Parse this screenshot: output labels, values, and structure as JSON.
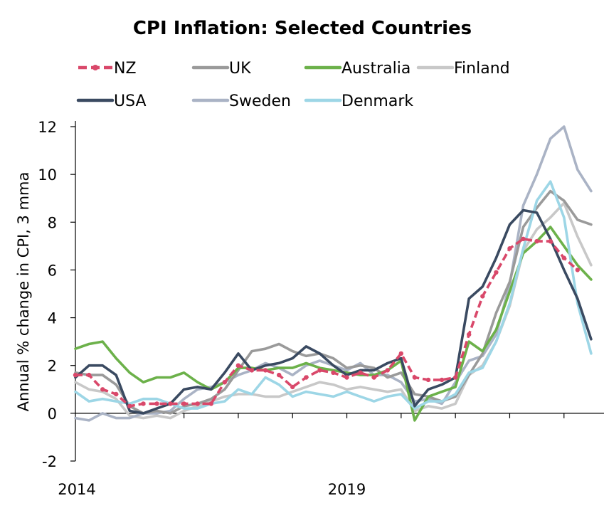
{
  "chart_data": {
    "type": "line",
    "title": "CPI Inflation: Selected Countries",
    "ylabel": "Annual % change in CPI, 3 mma",
    "xlabel": "",
    "xlim": [
      2014.0,
      2023.75
    ],
    "ylim": [
      -2,
      12
    ],
    "yticks": [
      -2,
      0,
      2,
      4,
      6,
      8,
      10,
      12
    ],
    "xtick_labels": [
      {
        "x": 2014.0,
        "label": "2014"
      },
      {
        "x": 2019.0,
        "label": "2019"
      }
    ],
    "grid": false,
    "legend_position": "top",
    "series": [
      {
        "name": "NZ",
        "color": "#d9486a",
        "style": "dashed-dots",
        "points": [
          [
            2014.0,
            1.6
          ],
          [
            2014.25,
            1.6
          ],
          [
            2014.5,
            1.0
          ],
          [
            2014.75,
            0.8
          ],
          [
            2015.0,
            0.3
          ],
          [
            2015.25,
            0.4
          ],
          [
            2015.5,
            0.4
          ],
          [
            2015.75,
            0.4
          ],
          [
            2016.0,
            0.4
          ],
          [
            2016.25,
            0.4
          ],
          [
            2016.5,
            0.4
          ],
          [
            2016.75,
            1.3
          ],
          [
            2017.0,
            2.0
          ],
          [
            2017.25,
            1.8
          ],
          [
            2017.5,
            1.8
          ],
          [
            2017.75,
            1.6
          ],
          [
            2018.0,
            1.1
          ],
          [
            2018.25,
            1.5
          ],
          [
            2018.5,
            1.8
          ],
          [
            2018.75,
            1.7
          ],
          [
            2019.0,
            1.5
          ],
          [
            2019.25,
            1.7
          ],
          [
            2019.5,
            1.5
          ],
          [
            2019.75,
            1.8
          ],
          [
            2020.0,
            2.5
          ],
          [
            2020.25,
            1.5
          ],
          [
            2020.5,
            1.4
          ],
          [
            2020.75,
            1.4
          ],
          [
            2021.0,
            1.5
          ],
          [
            2021.25,
            3.3
          ],
          [
            2021.5,
            4.9
          ],
          [
            2021.75,
            5.9
          ],
          [
            2022.0,
            6.9
          ],
          [
            2022.25,
            7.3
          ],
          [
            2022.5,
            7.2
          ],
          [
            2022.75,
            7.2
          ],
          [
            2023.0,
            6.5
          ],
          [
            2023.25,
            6.0
          ]
        ]
      },
      {
        "name": "UK",
        "color": "#9a9a9a",
        "style": "solid",
        "points": [
          [
            2014.0,
            1.7
          ],
          [
            2014.25,
            1.6
          ],
          [
            2014.5,
            1.6
          ],
          [
            2014.75,
            1.2
          ],
          [
            2015.0,
            0.3
          ],
          [
            2015.25,
            0.0
          ],
          [
            2015.5,
            0.1
          ],
          [
            2015.75,
            0.0
          ],
          [
            2016.0,
            0.3
          ],
          [
            2016.25,
            0.4
          ],
          [
            2016.5,
            0.6
          ],
          [
            2016.75,
            1.0
          ],
          [
            2017.0,
            1.8
          ],
          [
            2017.25,
            2.6
          ],
          [
            2017.5,
            2.7
          ],
          [
            2017.75,
            2.9
          ],
          [
            2018.0,
            2.6
          ],
          [
            2018.25,
            2.4
          ],
          [
            2018.5,
            2.5
          ],
          [
            2018.75,
            2.3
          ],
          [
            2019.0,
            1.9
          ],
          [
            2019.25,
            2.0
          ],
          [
            2019.5,
            1.9
          ],
          [
            2019.75,
            1.5
          ],
          [
            2020.0,
            1.7
          ],
          [
            2020.25,
            0.8
          ],
          [
            2020.5,
            0.7
          ],
          [
            2020.75,
            0.5
          ],
          [
            2021.0,
            0.7
          ],
          [
            2021.25,
            1.6
          ],
          [
            2021.5,
            2.5
          ],
          [
            2021.75,
            4.2
          ],
          [
            2022.0,
            5.5
          ],
          [
            2022.25,
            7.8
          ],
          [
            2022.5,
            8.6
          ],
          [
            2022.75,
            9.3
          ],
          [
            2023.0,
            8.9
          ],
          [
            2023.25,
            8.1
          ],
          [
            2023.5,
            7.9
          ]
        ]
      },
      {
        "name": "Australia",
        "color": "#6cb14a",
        "style": "solid",
        "points": [
          [
            2014.0,
            2.7
          ],
          [
            2014.25,
            2.9
          ],
          [
            2014.5,
            3.0
          ],
          [
            2014.75,
            2.3
          ],
          [
            2015.0,
            1.7
          ],
          [
            2015.25,
            1.3
          ],
          [
            2015.5,
            1.5
          ],
          [
            2015.75,
            1.5
          ],
          [
            2016.0,
            1.7
          ],
          [
            2016.25,
            1.3
          ],
          [
            2016.5,
            1.0
          ],
          [
            2016.75,
            1.3
          ],
          [
            2017.0,
            1.9
          ],
          [
            2017.25,
            1.9
          ],
          [
            2017.5,
            1.8
          ],
          [
            2017.75,
            1.9
          ],
          [
            2018.0,
            1.9
          ],
          [
            2018.25,
            2.1
          ],
          [
            2018.5,
            1.9
          ],
          [
            2018.75,
            1.8
          ],
          [
            2019.0,
            1.7
          ],
          [
            2019.25,
            1.6
          ],
          [
            2019.5,
            1.6
          ],
          [
            2019.75,
            1.8
          ],
          [
            2020.0,
            2.2
          ],
          [
            2020.25,
            -0.3
          ],
          [
            2020.5,
            0.7
          ],
          [
            2020.75,
            0.9
          ],
          [
            2021.0,
            1.1
          ],
          [
            2021.25,
            3.0
          ],
          [
            2021.5,
            2.6
          ],
          [
            2021.75,
            3.5
          ],
          [
            2022.0,
            5.1
          ],
          [
            2022.25,
            6.7
          ],
          [
            2022.5,
            7.2
          ],
          [
            2022.75,
            7.8
          ],
          [
            2023.0,
            7.0
          ],
          [
            2023.25,
            6.2
          ],
          [
            2023.5,
            5.6
          ]
        ]
      },
      {
        "name": "Finland",
        "color": "#c8c8c8",
        "style": "solid",
        "points": [
          [
            2014.0,
            1.3
          ],
          [
            2014.25,
            1.0
          ],
          [
            2014.5,
            0.9
          ],
          [
            2014.75,
            0.6
          ],
          [
            2015.0,
            -0.1
          ],
          [
            2015.25,
            -0.2
          ],
          [
            2015.5,
            -0.1
          ],
          [
            2015.75,
            -0.2
          ],
          [
            2016.0,
            0.1
          ],
          [
            2016.25,
            0.3
          ],
          [
            2016.5,
            0.5
          ],
          [
            2016.75,
            0.7
          ],
          [
            2017.0,
            0.8
          ],
          [
            2017.25,
            0.8
          ],
          [
            2017.5,
            0.7
          ],
          [
            2017.75,
            0.7
          ],
          [
            2018.0,
            0.9
          ],
          [
            2018.25,
            1.1
          ],
          [
            2018.5,
            1.3
          ],
          [
            2018.75,
            1.2
          ],
          [
            2019.0,
            1.0
          ],
          [
            2019.25,
            1.1
          ],
          [
            2019.5,
            1.0
          ],
          [
            2019.75,
            0.9
          ],
          [
            2020.0,
            1.0
          ],
          [
            2020.25,
            0.1
          ],
          [
            2020.5,
            0.3
          ],
          [
            2020.75,
            0.2
          ],
          [
            2021.0,
            0.4
          ],
          [
            2021.25,
            1.6
          ],
          [
            2021.5,
            2.0
          ],
          [
            2021.75,
            3.0
          ],
          [
            2022.0,
            4.5
          ],
          [
            2022.25,
            6.8
          ],
          [
            2022.5,
            7.7
          ],
          [
            2022.75,
            8.2
          ],
          [
            2023.0,
            8.8
          ],
          [
            2023.25,
            7.4
          ],
          [
            2023.5,
            6.2
          ]
        ]
      },
      {
        "name": "USA",
        "color": "#3a4a61",
        "style": "solid",
        "points": [
          [
            2014.0,
            1.5
          ],
          [
            2014.25,
            2.0
          ],
          [
            2014.5,
            2.0
          ],
          [
            2014.75,
            1.6
          ],
          [
            2015.0,
            0.1
          ],
          [
            2015.25,
            0.0
          ],
          [
            2015.5,
            0.2
          ],
          [
            2015.75,
            0.4
          ],
          [
            2016.0,
            1.0
          ],
          [
            2016.25,
            1.1
          ],
          [
            2016.5,
            1.0
          ],
          [
            2016.75,
            1.7
          ],
          [
            2017.0,
            2.5
          ],
          [
            2017.25,
            1.8
          ],
          [
            2017.5,
            2.0
          ],
          [
            2017.75,
            2.1
          ],
          [
            2018.0,
            2.3
          ],
          [
            2018.25,
            2.8
          ],
          [
            2018.5,
            2.5
          ],
          [
            2018.75,
            2.0
          ],
          [
            2019.0,
            1.6
          ],
          [
            2019.25,
            1.8
          ],
          [
            2019.5,
            1.8
          ],
          [
            2019.75,
            2.1
          ],
          [
            2020.0,
            2.3
          ],
          [
            2020.25,
            0.3
          ],
          [
            2020.5,
            1.0
          ],
          [
            2020.75,
            1.2
          ],
          [
            2021.0,
            1.5
          ],
          [
            2021.25,
            4.8
          ],
          [
            2021.5,
            5.3
          ],
          [
            2021.75,
            6.5
          ],
          [
            2022.0,
            7.9
          ],
          [
            2022.25,
            8.5
          ],
          [
            2022.5,
            8.4
          ],
          [
            2022.75,
            7.3
          ],
          [
            2023.0,
            6.0
          ],
          [
            2023.25,
            4.8
          ],
          [
            2023.5,
            3.1
          ]
        ]
      },
      {
        "name": "Sweden",
        "color": "#aab3c5",
        "style": "solid",
        "points": [
          [
            2014.0,
            -0.2
          ],
          [
            2014.25,
            -0.3
          ],
          [
            2014.5,
            0.0
          ],
          [
            2014.75,
            -0.2
          ],
          [
            2015.0,
            -0.2
          ],
          [
            2015.25,
            0.0
          ],
          [
            2015.5,
            0.0
          ],
          [
            2015.75,
            0.1
          ],
          [
            2016.0,
            0.6
          ],
          [
            2016.25,
            1.0
          ],
          [
            2016.5,
            1.1
          ],
          [
            2016.75,
            1.3
          ],
          [
            2017.0,
            1.6
          ],
          [
            2017.25,
            1.8
          ],
          [
            2017.5,
            2.1
          ],
          [
            2017.75,
            1.9
          ],
          [
            2018.0,
            1.6
          ],
          [
            2018.25,
            2.0
          ],
          [
            2018.5,
            2.2
          ],
          [
            2018.75,
            2.0
          ],
          [
            2019.0,
            1.8
          ],
          [
            2019.25,
            2.1
          ],
          [
            2019.5,
            1.6
          ],
          [
            2019.75,
            1.6
          ],
          [
            2020.0,
            1.3
          ],
          [
            2020.25,
            0.5
          ],
          [
            2020.5,
            0.6
          ],
          [
            2020.75,
            0.4
          ],
          [
            2021.0,
            1.3
          ],
          [
            2021.25,
            2.2
          ],
          [
            2021.5,
            2.4
          ],
          [
            2021.75,
            3.3
          ],
          [
            2022.0,
            5.4
          ],
          [
            2022.25,
            8.7
          ],
          [
            2022.5,
            10.0
          ],
          [
            2022.75,
            11.5
          ],
          [
            2023.0,
            12.0
          ],
          [
            2023.25,
            10.2
          ],
          [
            2023.5,
            9.3
          ]
        ]
      },
      {
        "name": "Denmark",
        "color": "#9dd6e6",
        "style": "solid",
        "points": [
          [
            2014.0,
            0.9
          ],
          [
            2014.25,
            0.5
          ],
          [
            2014.5,
            0.6
          ],
          [
            2014.75,
            0.5
          ],
          [
            2015.0,
            0.4
          ],
          [
            2015.25,
            0.6
          ],
          [
            2015.5,
            0.6
          ],
          [
            2015.75,
            0.4
          ],
          [
            2016.0,
            0.2
          ],
          [
            2016.25,
            0.2
          ],
          [
            2016.5,
            0.4
          ],
          [
            2016.75,
            0.5
          ],
          [
            2017.0,
            1.0
          ],
          [
            2017.25,
            0.8
          ],
          [
            2017.5,
            1.5
          ],
          [
            2017.75,
            1.2
          ],
          [
            2018.0,
            0.7
          ],
          [
            2018.25,
            0.9
          ],
          [
            2018.5,
            0.8
          ],
          [
            2018.75,
            0.7
          ],
          [
            2019.0,
            0.9
          ],
          [
            2019.25,
            0.7
          ],
          [
            2019.5,
            0.5
          ],
          [
            2019.75,
            0.7
          ],
          [
            2020.0,
            0.8
          ],
          [
            2020.25,
            0.2
          ],
          [
            2020.5,
            0.5
          ],
          [
            2020.75,
            0.5
          ],
          [
            2021.0,
            0.8
          ],
          [
            2021.25,
            1.7
          ],
          [
            2021.5,
            1.9
          ],
          [
            2021.75,
            3.0
          ],
          [
            2022.0,
            4.6
          ],
          [
            2022.25,
            6.9
          ],
          [
            2022.5,
            8.9
          ],
          [
            2022.75,
            9.7
          ],
          [
            2023.0,
            8.2
          ],
          [
            2023.25,
            4.6
          ],
          [
            2023.5,
            2.5
          ]
        ]
      }
    ]
  }
}
